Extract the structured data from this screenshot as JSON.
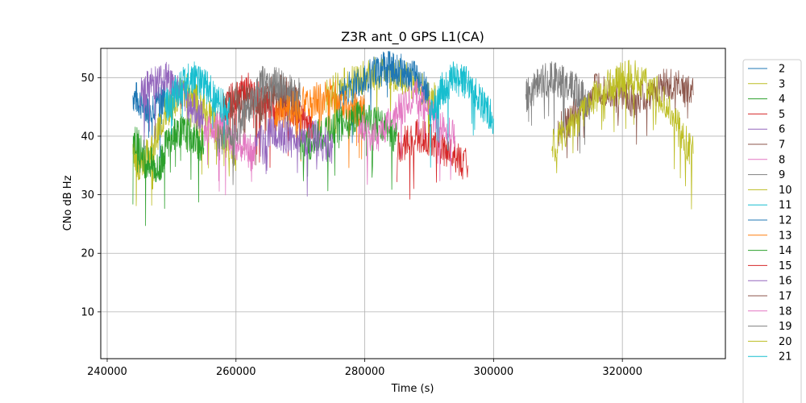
{
  "chart_data": {
    "type": "line",
    "title": "Z3R ant_0 GPS L1(CA)",
    "xlabel": "Time (s)",
    "ylabel": "CNo dB Hz",
    "xlim": [
      239000,
      336000
    ],
    "ylim": [
      2,
      55
    ],
    "x_ticks": [
      240000,
      260000,
      280000,
      300000,
      320000
    ],
    "x_tick_labels": [
      "240000",
      "260000",
      "280000",
      "300000",
      "320000"
    ],
    "y_ticks": [
      10,
      20,
      30,
      40,
      50
    ],
    "y_tick_labels": [
      "10",
      "20",
      "30",
      "40",
      "50"
    ],
    "grid": true,
    "legend_position": "right, outside plot",
    "series": [
      {
        "name": "2",
        "color": "#1f77b4",
        "points": [
          [
            244000,
            47
          ],
          [
            246000,
            45
          ],
          [
            248000,
            46
          ],
          [
            249000,
            47
          ]
        ]
      },
      {
        "name": "3",
        "color": "#bcbd22",
        "points": [
          [
            244000,
            38
          ],
          [
            245000,
            35
          ],
          [
            247000,
            38
          ],
          [
            249000,
            44
          ],
          [
            251000,
            47
          ],
          [
            253000,
            48
          ],
          [
            254000,
            46
          ],
          [
            256000,
            43
          ],
          [
            258000,
            40
          ],
          [
            260000,
            37
          ]
        ]
      },
      {
        "name": "4",
        "color": "#2ca02c",
        "points": [
          [
            244000,
            40
          ],
          [
            246000,
            36
          ],
          [
            248000,
            34
          ],
          [
            249000,
            38
          ],
          [
            251000,
            41
          ],
          [
            253000,
            40
          ],
          [
            255000,
            38
          ]
        ]
      },
      {
        "name": "5",
        "color": "#d62728",
        "points": [
          [
            258000,
            45
          ],
          [
            260000,
            47
          ],
          [
            262000,
            48
          ],
          [
            264000,
            46
          ],
          [
            266000,
            44
          ],
          [
            268000,
            45
          ],
          [
            270000,
            43
          ],
          [
            272000,
            42
          ]
        ]
      },
      {
        "name": "6",
        "color": "#9467bd",
        "points": [
          [
            245000,
            47
          ],
          [
            247000,
            49
          ],
          [
            249000,
            50
          ],
          [
            251000,
            48
          ],
          [
            253000,
            45
          ],
          [
            255000,
            43
          ]
        ]
      },
      {
        "name": "7",
        "color": "#8c564b",
        "points": [
          [
            258000,
            45
          ],
          [
            261000,
            47
          ],
          [
            264000,
            45
          ],
          [
            266000,
            48
          ],
          [
            268000,
            47
          ],
          [
            270000,
            45
          ]
        ]
      },
      {
        "name": "8",
        "color": "#e377c2",
        "points": [
          [
            255000,
            41
          ],
          [
            257000,
            42
          ],
          [
            259000,
            40
          ],
          [
            261000,
            38
          ],
          [
            263000,
            37
          ]
        ]
      },
      {
        "name": "9",
        "color": "#7f7f7f",
        "points": [
          [
            257000,
            39
          ],
          [
            260000,
            42
          ],
          [
            262000,
            45
          ],
          [
            264000,
            49
          ],
          [
            266000,
            49
          ],
          [
            268000,
            48
          ],
          [
            270000,
            47
          ]
        ]
      },
      {
        "name": "10",
        "color": "#bcbd22",
        "points": [
          [
            274000,
            47
          ],
          [
            277000,
            49
          ],
          [
            280000,
            50
          ],
          [
            283000,
            51
          ],
          [
            286000,
            50
          ],
          [
            289000,
            48
          ],
          [
            291000,
            46
          ]
        ]
      },
      {
        "name": "11",
        "color": "#17becf",
        "points": [
          [
            249000,
            45
          ],
          [
            251000,
            48
          ],
          [
            253000,
            50
          ],
          [
            255000,
            49
          ],
          [
            257000,
            46
          ],
          [
            259000,
            44
          ]
        ]
      },
      {
        "name": "12",
        "color": "#1f77b4",
        "points": [
          [
            276000,
            47
          ],
          [
            279000,
            49
          ],
          [
            282000,
            51
          ],
          [
            284000,
            52
          ],
          [
            286000,
            51
          ],
          [
            288000,
            50
          ],
          [
            290000,
            47
          ]
        ]
      },
      {
        "name": "13",
        "color": "#ff7f0e",
        "points": [
          [
            266000,
            43
          ],
          [
            269000,
            45
          ],
          [
            272000,
            46
          ],
          [
            275000,
            47
          ],
          [
            278000,
            45
          ],
          [
            280000,
            44
          ]
        ]
      },
      {
        "name": "14",
        "color": "#2ca02c",
        "points": [
          [
            270000,
            38
          ],
          [
            273000,
            40
          ],
          [
            276000,
            42
          ],
          [
            279000,
            43
          ],
          [
            282000,
            42
          ],
          [
            285000,
            40
          ]
        ]
      },
      {
        "name": "15",
        "color": "#d62728",
        "points": [
          [
            285000,
            38
          ],
          [
            288000,
            40
          ],
          [
            291000,
            39
          ],
          [
            293000,
            37
          ],
          [
            296000,
            35
          ]
        ]
      },
      {
        "name": "16",
        "color": "#9467bd",
        "points": [
          [
            263000,
            38
          ],
          [
            266000,
            41
          ],
          [
            269000,
            39
          ],
          [
            272000,
            40
          ],
          [
            275000,
            38
          ]
        ]
      },
      {
        "name": "17",
        "color": "#8c564b",
        "points": [
          [
            310000,
            41
          ],
          [
            313000,
            44
          ],
          [
            316000,
            48
          ],
          [
            319000,
            47
          ],
          [
            322000,
            46
          ],
          [
            325000,
            48
          ],
          [
            328000,
            49
          ],
          [
            331000,
            47
          ]
        ]
      },
      {
        "name": "18",
        "color": "#e377c2",
        "points": [
          [
            279000,
            41
          ],
          [
            282000,
            40
          ],
          [
            285000,
            44
          ],
          [
            288000,
            47
          ],
          [
            291000,
            43
          ],
          [
            294000,
            40
          ]
        ]
      },
      {
        "name": "19",
        "color": "#7f7f7f",
        "points": [
          [
            305000,
            47
          ],
          [
            307000,
            49
          ],
          [
            309000,
            50
          ],
          [
            311000,
            49
          ],
          [
            313000,
            48
          ],
          [
            315000,
            45
          ]
        ]
      },
      {
        "name": "20",
        "color": "#bcbd22",
        "points": [
          [
            309000,
            38
          ],
          [
            312000,
            42
          ],
          [
            315000,
            46
          ],
          [
            318000,
            49
          ],
          [
            320000,
            50
          ],
          [
            322000,
            50
          ],
          [
            325000,
            48
          ],
          [
            328000,
            43
          ],
          [
            331000,
            37
          ]
        ]
      },
      {
        "name": "21",
        "color": "#17becf",
        "points": [
          [
            290000,
            44
          ],
          [
            292000,
            48
          ],
          [
            294000,
            50
          ],
          [
            296000,
            49
          ],
          [
            298000,
            46
          ],
          [
            300000,
            43
          ]
        ]
      }
    ]
  }
}
